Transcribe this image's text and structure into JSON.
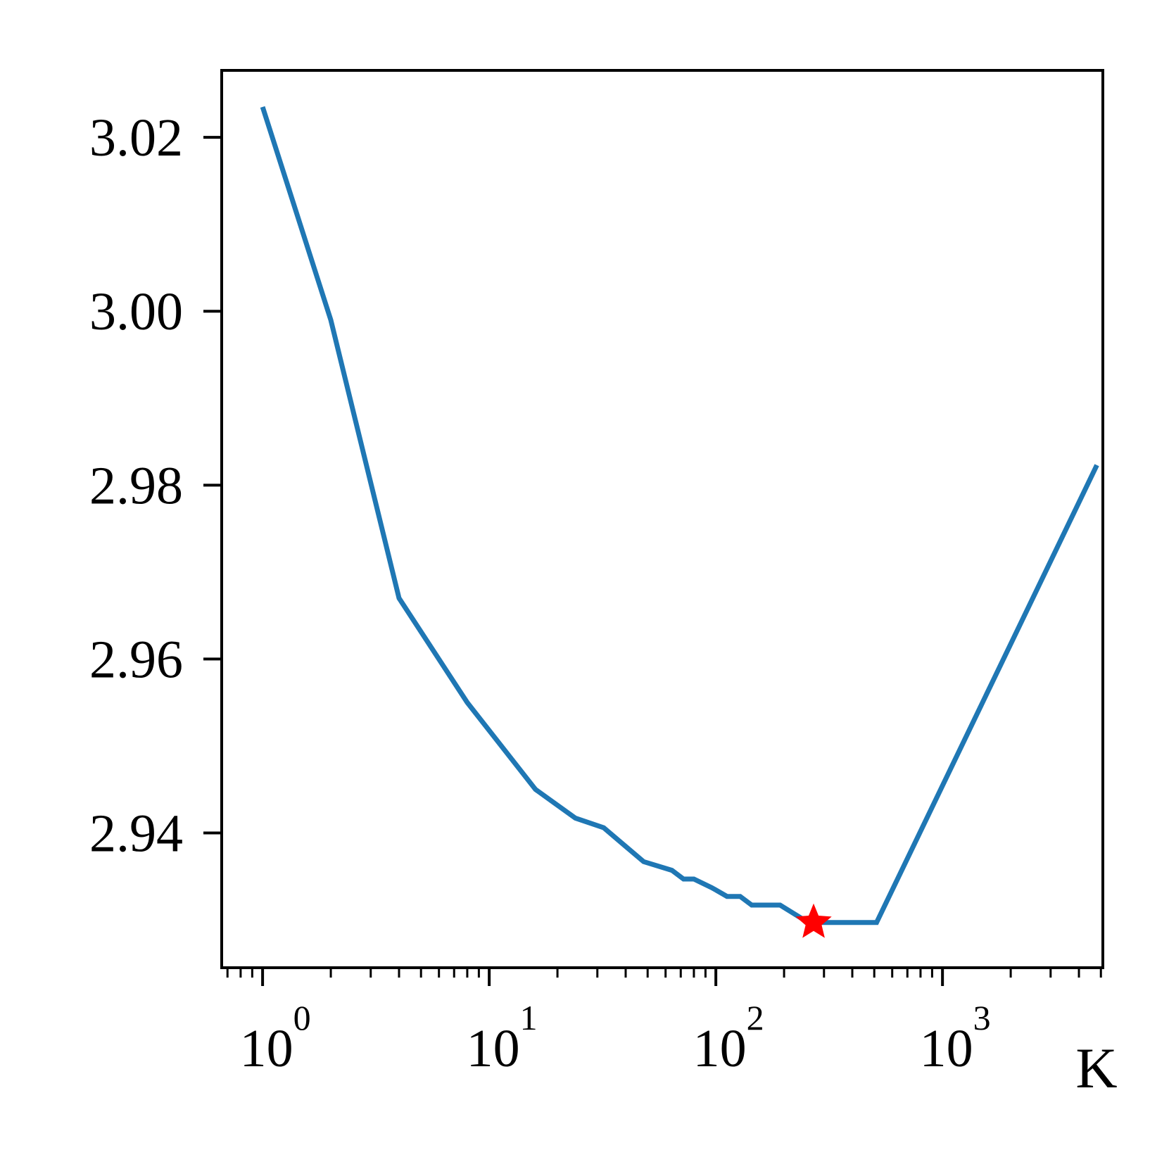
{
  "chart_data": {
    "type": "line",
    "title": "",
    "xlabel": "K",
    "ylabel": "",
    "xscale": "log",
    "xlim": [
      0.66,
      5100
    ],
    "ylim": [
      2.9245,
      3.0277
    ],
    "grid": false,
    "legend": "none",
    "x_ticks": [
      {
        "value": 1,
        "base": "10",
        "exp": "0"
      },
      {
        "value": 10,
        "base": "10",
        "exp": "1"
      },
      {
        "value": 100,
        "base": "10",
        "exp": "2"
      },
      {
        "value": 1000,
        "base": "10",
        "exp": "3"
      }
    ],
    "y_ticks": [
      {
        "value": 2.94,
        "label": "2.94"
      },
      {
        "value": 2.96,
        "label": "2.96"
      },
      {
        "value": 2.98,
        "label": "2.98"
      },
      {
        "value": 3.0,
        "label": "3.00"
      },
      {
        "value": 3.02,
        "label": "3.02"
      }
    ],
    "series": [
      {
        "color": "#1f77b4",
        "x": [
          1,
          2,
          4,
          8,
          16,
          24,
          32,
          48,
          64,
          72,
          80,
          96,
          112,
          128,
          144,
          192,
          256,
          384,
          512,
          4800
        ],
        "y": [
          3.0235,
          2.999,
          2.967,
          2.955,
          2.945,
          2.9417,
          2.9406,
          2.9367,
          2.9357,
          2.9347,
          2.9347,
          2.9337,
          2.9327,
          2.9327,
          2.9317,
          2.9317,
          2.9297,
          2.9297,
          2.9297,
          2.9823
        ]
      }
    ],
    "marker": {
      "x": 270,
      "y": 2.9297,
      "shape": "star",
      "color": "#ff0000"
    },
    "colors": {
      "line": "#1f77b4",
      "marker": "#ff0000",
      "axes": "#000000"
    }
  }
}
